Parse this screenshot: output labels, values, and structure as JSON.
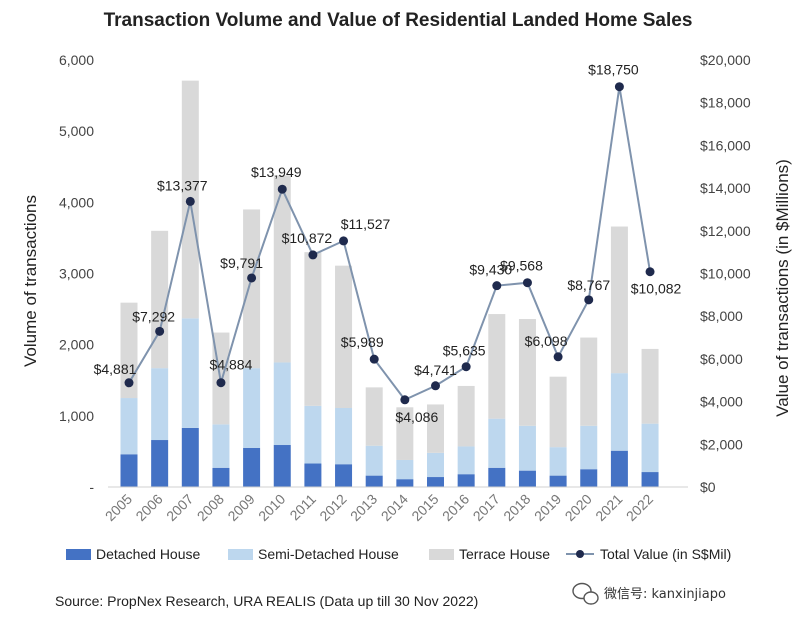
{
  "chart_data": {
    "type": "bar",
    "title": "Transaction Volume and Value of Residential Landed Home Sales",
    "ylabel": "Volume of transactions",
    "y2label": "Value of transactions (in $Millions)",
    "ylim": [
      0,
      6000
    ],
    "y2lim": [
      0,
      20000
    ],
    "yticks": [
      "-",
      "1,000",
      "2,000",
      "3,000",
      "4,000",
      "5,000",
      "6,000"
    ],
    "y2ticks": [
      "$0",
      "$2,000",
      "$4,000",
      "$6,000",
      "$8,000",
      "$10,000",
      "$12,000",
      "$14,000",
      "$16,000",
      "$18,000",
      "$20,000"
    ],
    "categories": [
      "2005",
      "2006",
      "2007",
      "2008",
      "2009",
      "2010",
      "2011",
      "2012",
      "2013",
      "2014",
      "2015",
      "2016",
      "2017",
      "2018",
      "2019",
      "2020",
      "2021",
      "2022"
    ],
    "stacked": true,
    "series": [
      {
        "name": "Detached House",
        "color": "#4472c4",
        "values": [
          460,
          660,
          830,
          270,
          550,
          590,
          330,
          320,
          160,
          110,
          140,
          180,
          270,
          230,
          160,
          250,
          510,
          210
        ]
      },
      {
        "name": "Semi-Detached House",
        "color": "#bdd7ee",
        "values": [
          790,
          1010,
          1540,
          610,
          1120,
          1160,
          810,
          790,
          420,
          270,
          340,
          390,
          690,
          630,
          400,
          610,
          1090,
          680
        ]
      },
      {
        "name": "Terrace House",
        "color": "#d9d9d9",
        "values": [
          1340,
          1930,
          3340,
          1290,
          2230,
          2630,
          2160,
          2000,
          820,
          740,
          680,
          850,
          1470,
          1500,
          990,
          1240,
          2060,
          1050
        ]
      }
    ],
    "line_series": {
      "name": "Total Value (in S$Mil)",
      "color": "#7f93ad",
      "marker_color": "#1f2a4d",
      "axis": "right",
      "values": [
        4881,
        7292,
        13377,
        4884,
        9791,
        13949,
        10872,
        11527,
        5989,
        4086,
        4741,
        5635,
        9430,
        9568,
        6098,
        8767,
        18750,
        10082
      ],
      "labels": [
        "$4,881",
        "$7,292",
        "$13,377",
        "$4,884",
        "$9,791",
        "$13,949",
        "$10,872",
        "$11,527",
        "$5,989",
        "$4,086",
        "$4,741",
        "$5,635",
        "$9,430",
        "$9,568",
        "$6,098",
        "$8,767",
        "$18,750",
        "$10,082"
      ]
    },
    "legend": "bottom",
    "grid": false
  },
  "source_text": "Source: PropNex Research, URA REALIS (Data up till 30 Nov 2022)",
  "watermark": {
    "text": "微信号: kanxinjiapo",
    "icon": "wechat-icon"
  }
}
